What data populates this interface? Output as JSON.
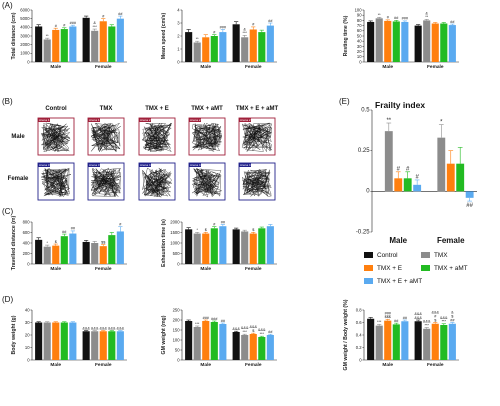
{
  "panels": {
    "A": "(A)",
    "B": "(B)",
    "C": "(C)",
    "D": "(D)",
    "E": "(E)"
  },
  "groups": [
    "Control",
    "TMX",
    "TMX + E",
    "TMX + aMT",
    "TMX + E + aMT"
  ],
  "sexes": [
    "Male",
    "Female"
  ],
  "colors": {
    "Control": "#111111",
    "TMX": "#8c8c8c",
    "TMX + E": "#ff7f0e",
    "TMX + aMT": "#22bb22",
    "TMX + E + aMT": "#5aaaf0",
    "arena_male": "#a0203a",
    "arena_female": "#22228a"
  },
  "tracking": {
    "row_labels": [
      "Male",
      "Female"
    ],
    "arena_labels": {
      "Male": [
        "Arena 1",
        "Arena 1",
        "Arena 2",
        "Arena 2",
        "Arena 2"
      ],
      "Female": [
        "Arena 3",
        "Arena 3",
        "Arena 4",
        "Arena 4",
        "Arena 4"
      ]
    }
  },
  "chart_data": [
    {
      "id": "total-distance",
      "type": "bar",
      "ylabel": "Total distance (cm)",
      "ylim": [
        0,
        6000
      ],
      "yticks": [
        0,
        1000,
        2000,
        3000,
        4000,
        5000,
        6000
      ],
      "categories": [
        "Male",
        "Female"
      ],
      "series": [
        {
          "name": "Control",
          "values": [
            4100,
            5100
          ],
          "err": [
            200,
            200
          ]
        },
        {
          "name": "TMX",
          "values": [
            2600,
            3600
          ],
          "err": [
            150,
            200
          ]
        },
        {
          "name": "TMX + E",
          "values": [
            3700,
            4700
          ],
          "err": [
            200,
            300
          ]
        },
        {
          "name": "TMX + aMT",
          "values": [
            3800,
            4100
          ],
          "err": [
            150,
            200
          ]
        },
        {
          "name": "TMX + E + aMT",
          "values": [
            4100,
            5000
          ],
          "err": [
            150,
            300
          ]
        }
      ],
      "annotations": [
        [
          "",
          "**",
          "#",
          "#",
          "###"
        ],
        [
          "",
          "&\n***",
          "#",
          "",
          "##"
        ]
      ]
    },
    {
      "id": "mean-speed",
      "type": "bar",
      "ylabel": "Mean speed (cm/s)",
      "ylim": [
        0,
        4
      ],
      "yticks": [
        0,
        1,
        2,
        3,
        4
      ],
      "categories": [
        "Male",
        "Female"
      ],
      "series": [
        {
          "name": "Control",
          "values": [
            2.3,
            2.9
          ],
          "err": [
            0.2,
            0.2
          ]
        },
        {
          "name": "TMX",
          "values": [
            1.5,
            1.9
          ],
          "err": [
            0.1,
            0.15
          ]
        },
        {
          "name": "TMX + E",
          "values": [
            1.9,
            2.5
          ],
          "err": [
            0.2,
            0.2
          ]
        },
        {
          "name": "TMX + aMT",
          "values": [
            2.0,
            2.3
          ],
          "err": [
            0.1,
            0.15
          ]
        },
        {
          "name": "TMX + E + aMT",
          "values": [
            2.3,
            2.8
          ],
          "err": [
            0.2,
            0.2
          ]
        }
      ],
      "annotations": [
        [
          "",
          "**",
          "",
          "#",
          "###"
        ],
        [
          "",
          "&\n***",
          "#",
          "",
          "##"
        ]
      ]
    },
    {
      "id": "resting-time",
      "type": "bar",
      "ylabel": "Resting time (%)",
      "ylim": [
        0,
        100
      ],
      "yticks": [
        0,
        10,
        20,
        30,
        40,
        50,
        60,
        70,
        80,
        90,
        100
      ],
      "categories": [
        "Male",
        "Female"
      ],
      "series": [
        {
          "name": "Control",
          "values": [
            77,
            70
          ],
          "err": [
            2,
            2
          ]
        },
        {
          "name": "TMX",
          "values": [
            84,
            80
          ],
          "err": [
            2,
            2
          ]
        },
        {
          "name": "TMX + E",
          "values": [
            79,
            74
          ],
          "err": [
            2,
            2
          ]
        },
        {
          "name": "TMX + aMT",
          "values": [
            78,
            74
          ],
          "err": [
            2,
            2
          ]
        },
        {
          "name": "TMX + E + aMT",
          "values": [
            77,
            71
          ],
          "err": [
            2,
            2
          ]
        }
      ],
      "annotations": [
        [
          "",
          "**",
          "#",
          "##",
          "###"
        ],
        [
          "",
          "&\n**",
          "",
          "",
          "##"
        ]
      ]
    },
    {
      "id": "travelled-distance",
      "type": "bar",
      "ylabel": "Travelled distance (m)",
      "ylim": [
        0,
        800
      ],
      "yticks": [
        0,
        200,
        400,
        600,
        800
      ],
      "categories": [
        "Male",
        "Female"
      ],
      "series": [
        {
          "name": "Control",
          "values": [
            460,
            420
          ],
          "err": [
            40,
            30
          ]
        },
        {
          "name": "TMX",
          "values": [
            330,
            400
          ],
          "err": [
            30,
            30
          ]
        },
        {
          "name": "TMX + E",
          "values": [
            350,
            340
          ],
          "err": [
            30,
            30
          ]
        },
        {
          "name": "TMX + aMT",
          "values": [
            530,
            550
          ],
          "err": [
            40,
            50
          ]
        },
        {
          "name": "TMX + E + aMT",
          "values": [
            580,
            620
          ],
          "err": [
            50,
            90
          ]
        }
      ],
      "annotations": [
        [
          "",
          "*",
          "$",
          "##",
          "##"
        ],
        [
          "",
          "",
          "$$",
          "",
          "#"
        ]
      ]
    },
    {
      "id": "exhaustion-time",
      "type": "bar",
      "ylabel": "Exhaustion time (s)",
      "ylim": [
        0,
        2000
      ],
      "yticks": [
        0,
        500,
        1000,
        1500,
        2000
      ],
      "categories": [
        "Male",
        "Female"
      ],
      "series": [
        {
          "name": "Control",
          "values": [
            1650,
            1650
          ],
          "err": [
            80,
            60
          ]
        },
        {
          "name": "TMX",
          "values": [
            1450,
            1550
          ],
          "err": [
            60,
            60
          ]
        },
        {
          "name": "TMX + E",
          "values": [
            1450,
            1450
          ],
          "err": [
            60,
            60
          ]
        },
        {
          "name": "TMX + aMT",
          "values": [
            1700,
            1700
          ],
          "err": [
            80,
            60
          ]
        },
        {
          "name": "TMX + E + aMT",
          "values": [
            1800,
            1800
          ],
          "err": [
            80,
            80
          ]
        }
      ],
      "annotations": [
        [
          "",
          "*",
          "$",
          "#",
          "##"
        ],
        [
          "",
          "",
          "$",
          "",
          ""
        ]
      ]
    },
    {
      "id": "body-weight",
      "type": "bar",
      "ylabel": "Body weight (g)",
      "ylim": [
        0,
        40
      ],
      "yticks": [
        0,
        10,
        20,
        30,
        40
      ],
      "categories": [
        "Male",
        "Female"
      ],
      "series": [
        {
          "name": "Control",
          "values": [
            30,
            23
          ],
          "err": [
            0.6,
            0.5
          ]
        },
        {
          "name": "TMX",
          "values": [
            30,
            23
          ],
          "err": [
            0.6,
            0.5
          ]
        },
        {
          "name": "TMX + E",
          "values": [
            30,
            23
          ],
          "err": [
            0.6,
            0.5
          ]
        },
        {
          "name": "TMX + aMT",
          "values": [
            30,
            23
          ],
          "err": [
            0.6,
            0.5
          ]
        },
        {
          "name": "TMX + E + aMT",
          "values": [
            30,
            23
          ],
          "err": [
            0.6,
            0.5
          ]
        }
      ],
      "annotations": [
        [
          "",
          "",
          "",
          "",
          ""
        ],
        [
          "&&&",
          "&&&",
          "&&&",
          "&&&",
          "&&&"
        ]
      ]
    },
    {
      "id": "gm-weight",
      "type": "bar",
      "ylabel": "GM weight (mg)",
      "ylim": [
        0,
        250
      ],
      "yticks": [
        0,
        50,
        100,
        150,
        200,
        250
      ],
      "categories": [
        "Male",
        "Female"
      ],
      "series": [
        {
          "name": "Control",
          "values": [
            195,
            140
          ],
          "err": [
            5,
            4
          ]
        },
        {
          "name": "TMX",
          "values": [
            165,
            125
          ],
          "err": [
            5,
            4
          ]
        },
        {
          "name": "TMX + E",
          "values": [
            195,
            130
          ],
          "err": [
            5,
            4
          ]
        },
        {
          "name": "TMX + aMT",
          "values": [
            190,
            115
          ],
          "err": [
            5,
            4
          ]
        },
        {
          "name": "TMX + E + aMT",
          "values": [
            180,
            125
          ],
          "err": [
            5,
            4
          ]
        }
      ],
      "annotations": [
        [
          "",
          "***",
          "###",
          "###",
          "##"
        ],
        [
          "&&&",
          "&&&\n***",
          "&&&\n$",
          "&&&\n***",
          "##"
        ]
      ]
    },
    {
      "id": "gm-body-ratio",
      "type": "bar",
      "ylabel": "GM weight / Body weight (%)",
      "ylim": [
        0,
        0.8
      ],
      "yticks": [
        0,
        0.2,
        0.4,
        0.6,
        0.8
      ],
      "categories": [
        "Male",
        "Female"
      ],
      "series": [
        {
          "name": "Control",
          "values": [
            0.66,
            0.62
          ],
          "err": [
            0.02,
            0.02
          ]
        },
        {
          "name": "TMX",
          "values": [
            0.55,
            0.5
          ],
          "err": [
            0.02,
            0.02
          ]
        },
        {
          "name": "TMX + E",
          "values": [
            0.63,
            0.58
          ],
          "err": [
            0.02,
            0.02
          ]
        },
        {
          "name": "TMX + aMT",
          "values": [
            0.57,
            0.56
          ],
          "err": [
            0.02,
            0.02
          ]
        },
        {
          "name": "TMX + E + aMT",
          "values": [
            0.62,
            0.58
          ],
          "err": [
            0.02,
            0.02
          ]
        }
      ],
      "annotations": [
        [
          "",
          "***",
          "###\n$$$",
          "##",
          "##"
        ],
        [
          "&&&\n&&&",
          "&&&\n***",
          "&&&\n#\n$",
          "&&&\n***",
          "&\n$\n##"
        ]
      ]
    },
    {
      "id": "frailty-index",
      "type": "bar",
      "title": "Frailty index",
      "ylim": [
        -0.25,
        0.5
      ],
      "yticks": [
        -0.25,
        0,
        0.25,
        0.5
      ],
      "categories": [
        "Male",
        "Female"
      ],
      "series": [
        {
          "name": "Control",
          "values": [
            0,
            0
          ],
          "err": [
            0,
            0
          ]
        },
        {
          "name": "TMX",
          "values": [
            0.37,
            0.33
          ],
          "err": [
            0.05,
            0.08
          ]
        },
        {
          "name": "TMX + E",
          "values": [
            0.08,
            0.17
          ],
          "err": [
            0.04,
            0.08
          ]
        },
        {
          "name": "TMX + aMT",
          "values": [
            0.08,
            0.17
          ],
          "err": [
            0.04,
            0.1
          ]
        },
        {
          "name": "TMX + E + aMT",
          "values": [
            0.04,
            -0.04
          ],
          "err": [
            0.03,
            0.02
          ]
        }
      ],
      "annotations": [
        [
          "",
          "**",
          "#",
          "#",
          "#"
        ],
        [
          "",
          "*",
          "",
          "",
          "##"
        ]
      ]
    }
  ]
}
